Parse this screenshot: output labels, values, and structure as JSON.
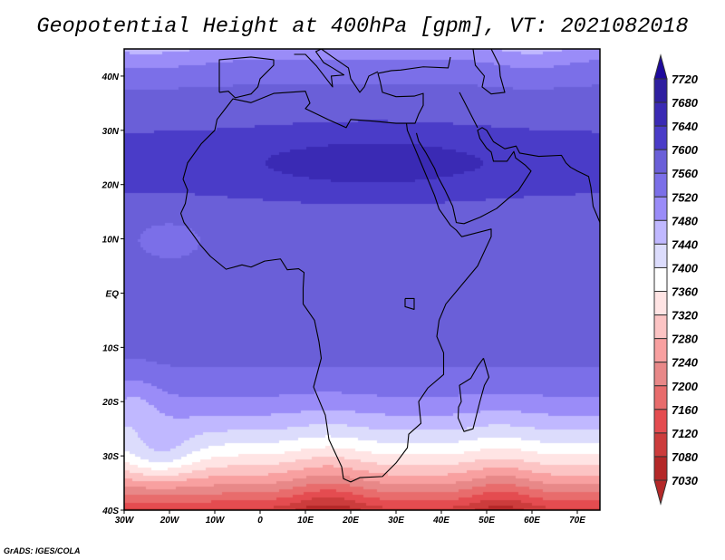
{
  "title": "Geopotential Height at 400hPa [gpm], VT: 2021082018",
  "credit": "GrADS: IGES/COLA",
  "map": {
    "lon_range": [
      -30,
      75
    ],
    "lat_range": [
      -40,
      45
    ],
    "x_ticks": [
      {
        "value": -30,
        "label": "30W"
      },
      {
        "value": -20,
        "label": "20W"
      },
      {
        "value": -10,
        "label": "10W"
      },
      {
        "value": 0,
        "label": "0"
      },
      {
        "value": 10,
        "label": "10E"
      },
      {
        "value": 20,
        "label": "20E"
      },
      {
        "value": 30,
        "label": "30E"
      },
      {
        "value": 40,
        "label": "40E"
      },
      {
        "value": 50,
        "label": "50E"
      },
      {
        "value": 60,
        "label": "60E"
      },
      {
        "value": 70,
        "label": "70E"
      }
    ],
    "y_ticks": [
      {
        "value": 40,
        "label": "40N"
      },
      {
        "value": 30,
        "label": "30N"
      },
      {
        "value": 20,
        "label": "20N"
      },
      {
        "value": 10,
        "label": "10N"
      },
      {
        "value": 0,
        "label": "EQ"
      },
      {
        "value": -10,
        "label": "10S"
      },
      {
        "value": -20,
        "label": "20S"
      },
      {
        "value": -30,
        "label": "30S"
      },
      {
        "value": -40,
        "label": "40S"
      }
    ]
  },
  "colorbar": {
    "labels": [
      "7720",
      "7680",
      "7640",
      "7600",
      "7560",
      "7520",
      "7480",
      "7440",
      "7400",
      "7360",
      "7320",
      "7280",
      "7240",
      "7200",
      "7160",
      "7120",
      "7080",
      "7030"
    ],
    "levels": [
      7030,
      7080,
      7120,
      7160,
      7200,
      7240,
      7280,
      7320,
      7360,
      7400,
      7440,
      7480,
      7520,
      7560,
      7600,
      7640,
      7680,
      7720
    ],
    "colors": [
      "#b42828",
      "#b42828",
      "#cc3c3c",
      "#e44c50",
      "#e86c6c",
      "#e88888",
      "#f8a0a0",
      "#fcc4c4",
      "#ffe4e4",
      "#ffffff",
      "#dcdcfc",
      "#c0b8ff",
      "#9a8cf8",
      "#7b6fe8",
      "#6a5fd8",
      "#4a3cc8",
      "#3a2ab4",
      "#2f1fa0",
      "#1e0a9c"
    ]
  }
}
